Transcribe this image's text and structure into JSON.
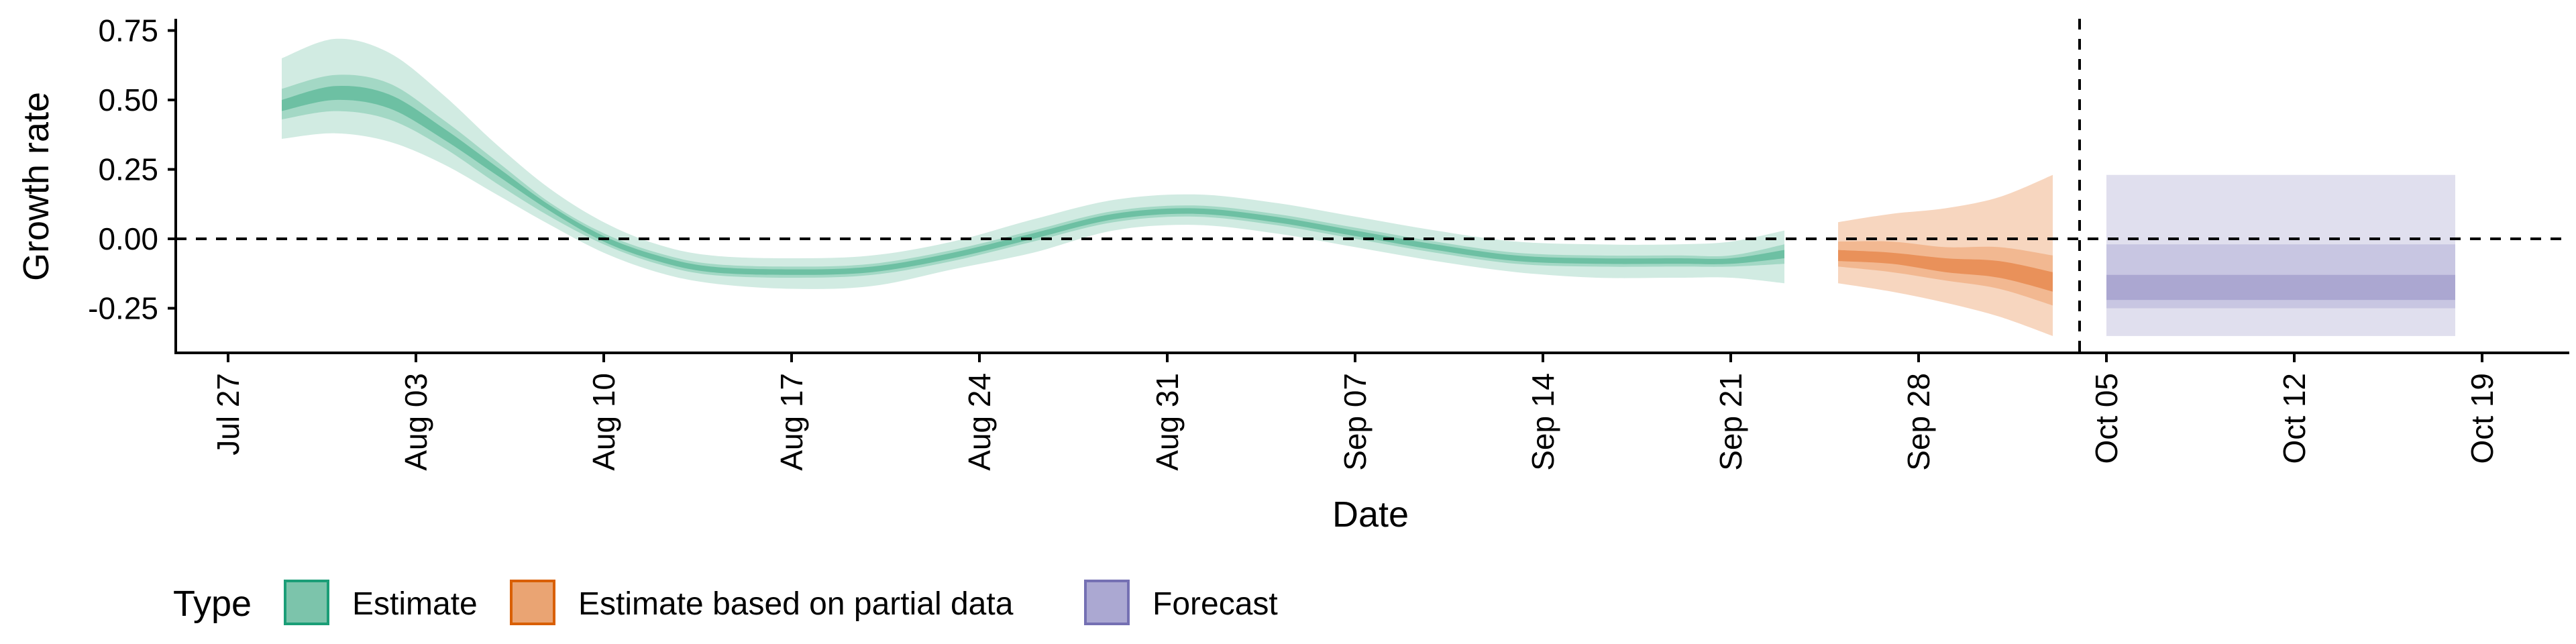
{
  "chart_data": {
    "type": "area",
    "title": "",
    "xlabel": "Date",
    "ylabel": "Growth rate",
    "x_axis": {
      "type": "date",
      "range": [
        "2020-07-25",
        "2020-10-21"
      ],
      "tick_dates": [
        "2020-07-27",
        "2020-08-03",
        "2020-08-10",
        "2020-08-17",
        "2020-08-24",
        "2020-08-31",
        "2020-09-07",
        "2020-09-14",
        "2020-09-21",
        "2020-09-28",
        "2020-10-05",
        "2020-10-12",
        "2020-10-19"
      ],
      "tick_labels": [
        "Jul 27",
        "Aug 03",
        "Aug 10",
        "Aug 17",
        "Aug 24",
        "Aug 31",
        "Sep 07",
        "Sep 14",
        "Sep 21",
        "Sep 28",
        "Oct 05",
        "Oct 12",
        "Oct 19"
      ]
    },
    "y_axis": {
      "range": [
        -0.4,
        0.76
      ],
      "ticks": [
        -0.25,
        0,
        0.25,
        0.5,
        0.75
      ],
      "tick_labels": [
        "-0.25",
        "0.00",
        "0.25",
        "0.50",
        "0.75"
      ]
    },
    "grid": false,
    "reference_lines": [
      {
        "orientation": "horizontal",
        "y": 0,
        "style": "dashed"
      },
      {
        "orientation": "vertical",
        "x": "2020-10-04",
        "style": "dashed"
      }
    ],
    "legend": {
      "title": "Type",
      "position": "bottom-left",
      "entries": [
        {
          "label": "Estimate",
          "fill": "#7cc4ab",
          "stroke": "#1b9e77"
        },
        {
          "label": "Estimate based on partial data",
          "fill": "#eaa473",
          "stroke": "#d95f02"
        },
        {
          "label": "Forecast",
          "fill": "#aba8d2",
          "stroke": "#7570b3"
        }
      ]
    },
    "series": [
      {
        "name": "Estimate",
        "colors": {
          "outer": "#d1ebe2",
          "mid": "#a3d8c5",
          "inner": "#6dc0a3"
        },
        "points": [
          {
            "x": "2020-07-29",
            "lo90": 0.36,
            "lo50": 0.43,
            "lo20": 0.46,
            "hi20": 0.5,
            "hi50": 0.54,
            "hi90": 0.65
          },
          {
            "x": "2020-07-31",
            "lo90": 0.38,
            "lo50": 0.46,
            "lo20": 0.5,
            "hi20": 0.55,
            "hi50": 0.59,
            "hi90": 0.72
          },
          {
            "x": "2020-08-02",
            "lo90": 0.35,
            "lo50": 0.43,
            "lo20": 0.47,
            "hi20": 0.52,
            "hi50": 0.56,
            "hi90": 0.67
          },
          {
            "x": "2020-08-04",
            "lo90": 0.27,
            "lo50": 0.33,
            "lo20": 0.36,
            "hi20": 0.4,
            "hi50": 0.43,
            "hi90": 0.52
          },
          {
            "x": "2020-08-06",
            "lo90": 0.16,
            "lo50": 0.2,
            "lo20": 0.23,
            "hi20": 0.26,
            "hi50": 0.28,
            "hi90": 0.34
          },
          {
            "x": "2020-08-08",
            "lo90": 0.05,
            "lo50": 0.08,
            "lo20": 0.1,
            "hi20": 0.12,
            "hi50": 0.13,
            "hi90": 0.18
          },
          {
            "x": "2020-08-10",
            "lo90": -0.05,
            "lo50": -0.02,
            "lo20": -0.01,
            "hi20": 0.01,
            "hi50": 0.02,
            "hi90": 0.06
          },
          {
            "x": "2020-08-12",
            "lo90": -0.12,
            "lo50": -0.09,
            "lo20": -0.08,
            "hi20": -0.06,
            "hi50": -0.05,
            "hi90": -0.02
          },
          {
            "x": "2020-08-14",
            "lo90": -0.16,
            "lo50": -0.13,
            "lo20": -0.12,
            "hi20": -0.1,
            "hi50": -0.09,
            "hi90": -0.06
          },
          {
            "x": "2020-08-17",
            "lo90": -0.18,
            "lo50": -0.14,
            "lo20": -0.13,
            "hi20": -0.11,
            "hi50": -0.1,
            "hi90": -0.07
          },
          {
            "x": "2020-08-20",
            "lo90": -0.17,
            "lo50": -0.13,
            "lo20": -0.12,
            "hi20": -0.1,
            "hi50": -0.09,
            "hi90": -0.06
          },
          {
            "x": "2020-08-23",
            "lo90": -0.11,
            "lo50": -0.08,
            "lo20": -0.07,
            "hi20": -0.05,
            "hi50": -0.04,
            "hi90": -0.01
          },
          {
            "x": "2020-08-26",
            "lo90": -0.05,
            "lo50": -0.01,
            "lo20": 0.0,
            "hi20": 0.02,
            "hi50": 0.03,
            "hi90": 0.07
          },
          {
            "x": "2020-08-29",
            "lo90": 0.03,
            "lo50": 0.06,
            "lo20": 0.07,
            "hi20": 0.09,
            "hi50": 0.1,
            "hi90": 0.14
          },
          {
            "x": "2020-09-01",
            "lo90": 0.05,
            "lo50": 0.08,
            "lo20": 0.09,
            "hi20": 0.11,
            "hi50": 0.12,
            "hi90": 0.16
          },
          {
            "x": "2020-09-04",
            "lo90": 0.02,
            "lo50": 0.05,
            "lo20": 0.06,
            "hi20": 0.08,
            "hi50": 0.09,
            "hi90": 0.13
          },
          {
            "x": "2020-09-07",
            "lo90": -0.03,
            "lo50": 0.0,
            "lo20": 0.01,
            "hi20": 0.03,
            "hi50": 0.04,
            "hi90": 0.08
          },
          {
            "x": "2020-09-10",
            "lo90": -0.08,
            "lo50": -0.05,
            "lo20": -0.04,
            "hi20": -0.02,
            "hi50": -0.01,
            "hi90": 0.03
          },
          {
            "x": "2020-09-13",
            "lo90": -0.12,
            "lo50": -0.09,
            "lo20": -0.08,
            "hi20": -0.06,
            "hi50": -0.05,
            "hi90": -0.01
          },
          {
            "x": "2020-09-16",
            "lo90": -0.14,
            "lo50": -0.1,
            "lo20": -0.09,
            "hi20": -0.07,
            "hi50": -0.06,
            "hi90": -0.02
          },
          {
            "x": "2020-09-19",
            "lo90": -0.14,
            "lo50": -0.1,
            "lo20": -0.09,
            "hi20": -0.07,
            "hi50": -0.06,
            "hi90": -0.02
          },
          {
            "x": "2020-09-21",
            "lo90": -0.14,
            "lo50": -0.1,
            "lo20": -0.09,
            "hi20": -0.07,
            "hi50": -0.06,
            "hi90": -0.01
          },
          {
            "x": "2020-09-23",
            "lo90": -0.16,
            "lo50": -0.09,
            "lo20": -0.07,
            "hi20": -0.04,
            "hi50": -0.02,
            "hi90": 0.03
          }
        ]
      },
      {
        "name": "Estimate based on partial data",
        "colors": {
          "outer": "#f7d6bf",
          "mid": "#f2b891",
          "inner": "#e9915a"
        },
        "points": [
          {
            "x": "2020-09-25",
            "lo90": -0.16,
            "lo50": -0.1,
            "lo20": -0.08,
            "hi20": -0.04,
            "hi50": -0.01,
            "hi90": 0.06
          },
          {
            "x": "2020-09-27",
            "lo90": -0.19,
            "lo50": -0.12,
            "lo20": -0.09,
            "hi20": -0.05,
            "hi50": -0.01,
            "hi90": 0.09
          },
          {
            "x": "2020-09-29",
            "lo90": -0.23,
            "lo50": -0.15,
            "lo20": -0.12,
            "hi20": -0.07,
            "hi50": -0.03,
            "hi90": 0.11
          },
          {
            "x": "2020-10-01",
            "lo90": -0.28,
            "lo50": -0.18,
            "lo20": -0.14,
            "hi20": -0.08,
            "hi50": -0.03,
            "hi90": 0.15
          },
          {
            "x": "2020-10-03",
            "lo90": -0.35,
            "lo50": -0.24,
            "lo20": -0.19,
            "hi20": -0.12,
            "hi50": -0.06,
            "hi90": 0.23
          }
        ]
      },
      {
        "name": "Forecast",
        "colors": {
          "outer": "#e0dfee",
          "mid": "#c8c6e2",
          "inner": "#aba7d1"
        },
        "points": [
          {
            "x": "2020-10-05",
            "lo90": -0.35,
            "lo50": -0.25,
            "lo20": -0.22,
            "hi20": -0.13,
            "hi50": -0.02,
            "hi90": 0.23
          },
          {
            "x": "2020-10-18",
            "lo90": -0.35,
            "lo50": -0.25,
            "lo20": -0.22,
            "hi20": -0.13,
            "hi50": -0.02,
            "hi90": 0.23
          }
        ]
      }
    ]
  }
}
